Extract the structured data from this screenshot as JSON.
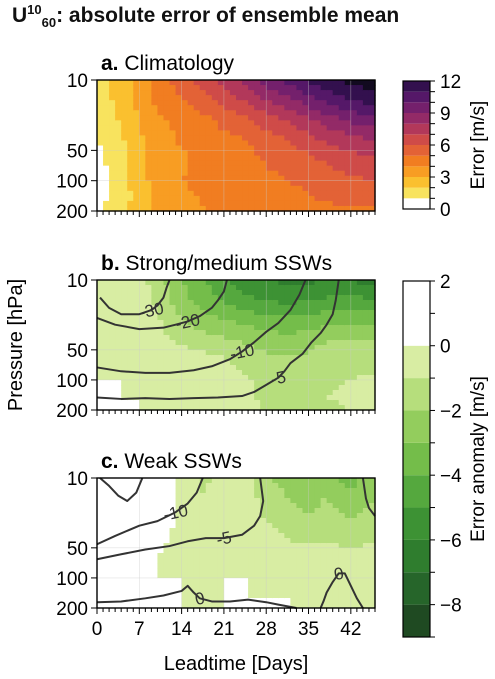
{
  "title": {
    "symbol": "U",
    "sup": "10",
    "sub": "60",
    "rest": ": absolute error of ensemble mean"
  },
  "axes": {
    "ylabel": "Pressure [hPa]",
    "xlabel": "Leadtime [Days]",
    "yticks": [
      10,
      50,
      100,
      200
    ],
    "xticks": [
      0,
      7,
      14,
      21,
      28,
      35,
      42
    ],
    "xlim": [
      0,
      46
    ],
    "ylim": [
      200,
      10
    ],
    "yscale": "log"
  },
  "colorbar_a": {
    "label": "Error [m/s]",
    "ticks": [
      0,
      3,
      6,
      9,
      12
    ],
    "levels": [
      0,
      1,
      2,
      3,
      4,
      5,
      6,
      7,
      8,
      9,
      10,
      11,
      12
    ],
    "colors": [
      "#ffffff",
      "#f8e35e",
      "#fac02f",
      "#f89d23",
      "#f17d21",
      "#e36236",
      "#cf4b48",
      "#b2385a",
      "#932a67",
      "#74206c",
      "#551868",
      "#33104e",
      "#120a20"
    ]
  },
  "colorbar_b": {
    "label": "Error anomaly [m/s]",
    "ticks": [
      2,
      0,
      -2,
      -4,
      -6,
      -8
    ],
    "levels": [
      -9,
      -8,
      -7,
      -6,
      -5,
      -4,
      -3,
      -2,
      -1,
      0,
      1,
      2
    ],
    "colors": [
      "#1f4a22",
      "#26652a",
      "#2f7d2e",
      "#3d9234",
      "#55a83e",
      "#74bd4a",
      "#93cd5d",
      "#b6de7c",
      "#d8eda3",
      "#ffffff",
      "#ffffff",
      "#dcb4c3"
    ]
  },
  "chart_data": [
    {
      "panel": "a",
      "label": "a.",
      "title": "Climatology",
      "type": "heatmap",
      "x": [
        0,
        4,
        7,
        10,
        14,
        18,
        21,
        25,
        28,
        32,
        35,
        38,
        42,
        46
      ],
      "y": [
        10,
        15,
        25,
        40,
        60,
        100,
        150,
        200
      ],
      "z": [
        [
          1.5,
          2.5,
          3.5,
          4.5,
          5.5,
          6.5,
          7.5,
          8.5,
          9.5,
          10.5,
          11.2,
          11.8,
          12.3,
          12.6
        ],
        [
          1.4,
          2.4,
          3.4,
          4.3,
          5.0,
          5.8,
          6.5,
          7.3,
          8.2,
          9.0,
          9.8,
          10.5,
          11.2,
          11.6
        ],
        [
          1.2,
          2.1,
          3.0,
          3.8,
          4.3,
          4.8,
          5.3,
          5.8,
          6.5,
          7.2,
          7.8,
          8.5,
          9.2,
          9.6
        ],
        [
          1.0,
          1.8,
          2.8,
          3.6,
          4.1,
          4.4,
          4.7,
          5.0,
          5.5,
          6.0,
          6.6,
          7.1,
          7.6,
          8.0
        ],
        [
          0.7,
          1.6,
          2.7,
          3.4,
          3.9,
          4.2,
          4.5,
          4.7,
          5.1,
          5.4,
          5.8,
          6.2,
          6.6,
          7.0
        ],
        [
          0.6,
          1.5,
          2.6,
          3.4,
          4.0,
          4.2,
          4.4,
          4.6,
          4.8,
          5.0,
          5.3,
          5.5,
          5.8,
          6.0
        ],
        [
          0.6,
          1.5,
          2.4,
          3.3,
          3.8,
          4.1,
          4.3,
          4.4,
          4.6,
          4.7,
          4.9,
          5.1,
          5.3,
          5.4
        ],
        [
          0.8,
          1.7,
          2.5,
          3.2,
          3.7,
          4.0,
          4.2,
          4.3,
          4.4,
          4.5,
          4.6,
          4.7,
          4.8,
          4.9
        ]
      ]
    },
    {
      "panel": "b",
      "label": "b.",
      "title": "Strong/medium SSWs",
      "type": "heatmap",
      "x": [
        0,
        4,
        7,
        10,
        14,
        18,
        21,
        25,
        28,
        32,
        35,
        38,
        42,
        46
      ],
      "y": [
        10,
        15,
        25,
        40,
        60,
        100,
        150,
        200
      ],
      "z": [
        [
          -0.3,
          -0.4,
          -0.6,
          -1.5,
          -3.0,
          -4.0,
          -5.0,
          -5.6,
          -6.0,
          -6.2,
          -6.2,
          -5.9,
          -6.1,
          -6.4
        ],
        [
          -0.3,
          -0.4,
          -0.5,
          -1.2,
          -2.7,
          -3.6,
          -4.3,
          -4.9,
          -5.3,
          -5.4,
          -5.2,
          -5.0,
          -4.9,
          -5.1
        ],
        [
          -0.2,
          -0.3,
          -0.4,
          -0.9,
          -2.0,
          -2.6,
          -3.0,
          -3.4,
          -3.7,
          -3.8,
          -3.6,
          -3.4,
          -3.2,
          -3.3
        ],
        [
          -0.1,
          -0.2,
          -0.3,
          -0.6,
          -1.2,
          -1.6,
          -1.9,
          -2.2,
          -2.5,
          -2.6,
          -2.4,
          -2.1,
          -1.9,
          -1.8
        ],
        [
          0.0,
          -0.1,
          -0.2,
          -0.3,
          -0.5,
          -0.8,
          -1.0,
          -1.4,
          -1.8,
          -2.0,
          -1.8,
          -1.5,
          -1.3,
          -1.2
        ],
        [
          0.0,
          0.0,
          -0.1,
          -0.2,
          -0.3,
          -0.4,
          -0.6,
          -0.9,
          -1.2,
          -1.5,
          -1.3,
          -1.1,
          -1.0,
          -0.9
        ],
        [
          0.0,
          0.0,
          0.0,
          -0.1,
          -0.2,
          -0.3,
          -0.4,
          -0.8,
          -1.2,
          -1.4,
          -1.2,
          -1.0,
          -0.9,
          -0.8
        ],
        [
          0.0,
          0.0,
          0.0,
          0.0,
          -0.1,
          -0.2,
          -0.3,
          -0.6,
          -1.3,
          -1.5,
          -1.3,
          -1.1,
          -1.0,
          -0.9
        ]
      ],
      "contours": [
        {
          "label": "-30",
          "points": [
            [
              0.5,
              15
            ],
            [
              2,
              19
            ],
            [
              4,
              22
            ],
            [
              7,
              22
            ],
            [
              9,
              20
            ],
            [
              10,
              18
            ],
            [
              11,
              15
            ],
            [
              11.5,
              12
            ],
            [
              12,
              10
            ]
          ]
        },
        {
          "label": "-20",
          "points": [
            [
              0,
              24
            ],
            [
              3,
              28
            ],
            [
              7,
              31
            ],
            [
              11,
              30
            ],
            [
              13,
              28
            ],
            [
              15,
              26
            ],
            [
              17,
              23
            ],
            [
              19,
              19
            ],
            [
              20,
              16
            ],
            [
              21,
              13
            ],
            [
              21.5,
              10
            ]
          ]
        },
        {
          "label": "-10",
          "points": [
            [
              0,
              75
            ],
            [
              4,
              82
            ],
            [
              8,
              85
            ],
            [
              12,
              85
            ],
            [
              16,
              80
            ],
            [
              19,
              73
            ],
            [
              22,
              62
            ],
            [
              24,
              52
            ],
            [
              26,
              42
            ],
            [
              28,
              33
            ],
            [
              30,
              27
            ],
            [
              32,
              20
            ],
            [
              33.5,
              14
            ],
            [
              34.5,
              10
            ]
          ]
        },
        {
          "label": "-5",
          "points": [
            [
              0,
              150
            ],
            [
              4,
              155
            ],
            [
              8,
              152
            ],
            [
              12,
              155
            ],
            [
              16,
              152
            ],
            [
              20,
              150
            ],
            [
              24,
              145
            ],
            [
              26,
              132
            ],
            [
              28,
              112
            ],
            [
              30,
              95
            ],
            [
              31,
              82
            ],
            [
              32,
              68
            ],
            [
              34,
              55
            ],
            [
              35.5,
              42
            ],
            [
              37,
              34
            ],
            [
              38,
              28
            ],
            [
              39,
              22
            ],
            [
              39.5,
              16
            ],
            [
              40,
              10
            ]
          ]
        }
      ]
    },
    {
      "panel": "c",
      "label": "c.",
      "title": "Weak SSWs",
      "type": "heatmap",
      "x": [
        0,
        4,
        7,
        10,
        14,
        18,
        21,
        25,
        28,
        32,
        35,
        38,
        42,
        46
      ],
      "y": [
        10,
        15,
        25,
        40,
        60,
        100,
        150,
        200
      ],
      "z": [
        [
          0.0,
          0.2,
          0.5,
          1.3,
          -0.3,
          -1.2,
          -0.2,
          -0.8,
          -1.8,
          -2.5,
          -3.0,
          -2.4,
          -3.5,
          -2.3
        ],
        [
          0.0,
          0.1,
          0.3,
          0.8,
          -0.2,
          -1.1,
          -0.2,
          -0.6,
          -1.5,
          -2.1,
          -2.5,
          -2.0,
          -2.9,
          -2.0
        ],
        [
          0.0,
          0.1,
          0.2,
          0.4,
          -0.2,
          -1.0,
          -0.1,
          -0.4,
          -1.1,
          -1.6,
          -1.9,
          -1.6,
          -2.1,
          -1.6
        ],
        [
          0.0,
          0.0,
          0.1,
          0.1,
          -0.1,
          -0.9,
          -0.1,
          -0.2,
          -0.6,
          -1.1,
          -1.3,
          -1.2,
          -1.4,
          -1.2
        ],
        [
          0.0,
          0.0,
          0.0,
          0.0,
          -0.1,
          -0.8,
          0.0,
          -0.1,
          -0.3,
          -0.5,
          -0.6,
          -0.5,
          -0.6,
          -0.5
        ],
        [
          0.0,
          0.0,
          0.0,
          0.0,
          0.0,
          -0.6,
          0.0,
          0.0,
          -0.1,
          -0.2,
          -0.3,
          -0.2,
          -0.2,
          -0.2
        ],
        [
          0.0,
          0.0,
          0.0,
          0.0,
          0.0,
          -0.5,
          0.0,
          0.0,
          0.0,
          0.0,
          -0.1,
          -0.1,
          -0.1,
          -0.1
        ],
        [
          0.0,
          0.0,
          0.0,
          0.0,
          0.0,
          -0.4,
          0.0,
          0.0,
          0.0,
          0.0,
          0.0,
          0.0,
          0.0,
          0.0
        ]
      ],
      "contours": [
        {
          "label": "",
          "points": [
            [
              0.5,
              10
            ],
            [
              2,
              12
            ],
            [
              3.5,
              15
            ],
            [
              5,
              17
            ],
            [
              6.5,
              14
            ],
            [
              7.5,
              10
            ]
          ]
        },
        {
          "label": "-10",
          "points": [
            [
              0,
              46
            ],
            [
              3,
              38
            ],
            [
              7,
              30
            ],
            [
              10,
              27
            ],
            [
              13,
              22
            ],
            [
              15,
              18
            ],
            [
              16.5,
              14
            ],
            [
              17.5,
              10
            ]
          ]
        },
        {
          "label": "-5",
          "points": [
            [
              0,
              65
            ],
            [
              4,
              58
            ],
            [
              8,
              52
            ],
            [
              12,
              48
            ],
            [
              15,
              43
            ],
            [
              18,
              40
            ],
            [
              21,
              40
            ],
            [
              24,
              37
            ],
            [
              26,
              30
            ],
            [
              27,
              24
            ],
            [
              27.5,
              17
            ],
            [
              27,
              10
            ]
          ]
        },
        {
          "label": "0",
          "points": [
            [
              0,
              175
            ],
            [
              4,
              172
            ],
            [
              8,
              160
            ],
            [
              11,
              150
            ],
            [
              14,
              135
            ],
            [
              15,
              120
            ],
            [
              16,
              140
            ],
            [
              17,
              160
            ],
            [
              19,
              172
            ],
            [
              22,
              172
            ],
            [
              25,
              165
            ],
            [
              28,
              175
            ],
            [
              30,
              185
            ],
            [
              33,
              200
            ]
          ]
        },
        {
          "label": "0",
          "points": [
            [
              37,
              200
            ],
            [
              37.5,
              170
            ],
            [
              38,
              140
            ],
            [
              39,
              110
            ],
            [
              40,
              90
            ],
            [
              41,
              90
            ],
            [
              42,
              120
            ],
            [
              43,
              160
            ],
            [
              44,
              200
            ]
          ]
        },
        {
          "label": "",
          "points": [
            [
              44,
              10
            ],
            [
              44.5,
              16
            ],
            [
              45,
              20
            ],
            [
              46,
              24
            ]
          ]
        }
      ]
    }
  ]
}
